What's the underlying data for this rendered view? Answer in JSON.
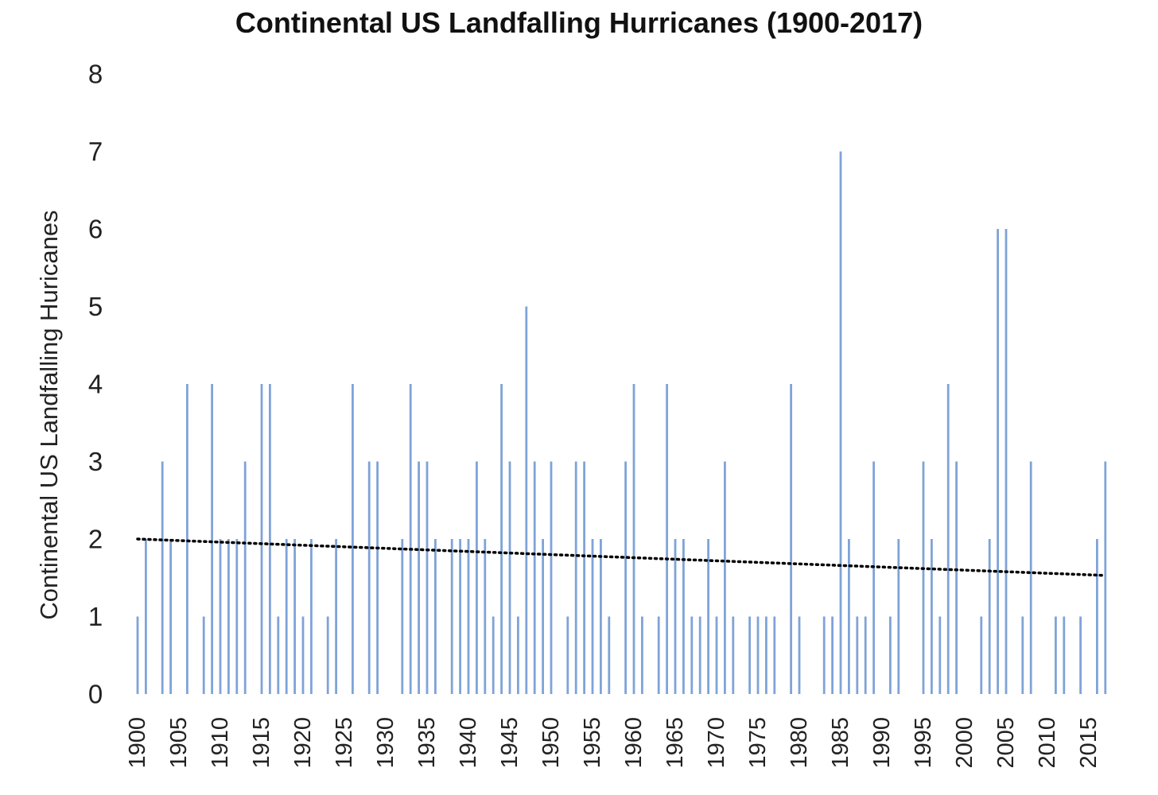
{
  "chart_data": {
    "type": "bar",
    "title": "Continental US Landfalling Hurricanes (1900-2017)",
    "xlabel": "",
    "ylabel": "Continental US Landfalling Huricanes",
    "ylim": [
      0,
      8
    ],
    "yticks": [
      "0",
      "1",
      "2",
      "3",
      "4",
      "5",
      "6",
      "7",
      "8"
    ],
    "xticks": [
      "1900",
      "1905",
      "1910",
      "1915",
      "1920",
      "1925",
      "1930",
      "1935",
      "1940",
      "1945",
      "1950",
      "1955",
      "1960",
      "1965",
      "1970",
      "1975",
      "1980",
      "1985",
      "1990",
      "1995",
      "2000",
      "2005",
      "2010",
      "2015"
    ],
    "grid": false,
    "legend": "none",
    "bar_color": "#7fa3d8",
    "trendline": {
      "style": "dotted",
      "color": "#000000",
      "start": 2.0,
      "end": 1.53
    },
    "categories": [
      "1900",
      "1901",
      "1902",
      "1903",
      "1904",
      "1905",
      "1906",
      "1907",
      "1908",
      "1909",
      "1910",
      "1911",
      "1912",
      "1913",
      "1914",
      "1915",
      "1916",
      "1917",
      "1918",
      "1919",
      "1920",
      "1921",
      "1922",
      "1923",
      "1924",
      "1925",
      "1926",
      "1927",
      "1928",
      "1929",
      "1930",
      "1931",
      "1932",
      "1933",
      "1934",
      "1935",
      "1936",
      "1937",
      "1938",
      "1939",
      "1940",
      "1941",
      "1942",
      "1943",
      "1944",
      "1945",
      "1946",
      "1947",
      "1948",
      "1949",
      "1950",
      "1951",
      "1952",
      "1953",
      "1954",
      "1955",
      "1956",
      "1957",
      "1958",
      "1959",
      "1960",
      "1961",
      "1962",
      "1963",
      "1964",
      "1965",
      "1966",
      "1967",
      "1968",
      "1969",
      "1970",
      "1971",
      "1972",
      "1973",
      "1974",
      "1975",
      "1976",
      "1977",
      "1978",
      "1979",
      "1980",
      "1981",
      "1982",
      "1983",
      "1984",
      "1985",
      "1986",
      "1987",
      "1988",
      "1989",
      "1990",
      "1991",
      "1992",
      "1993",
      "1994",
      "1995",
      "1996",
      "1997",
      "1998",
      "1999",
      "2000",
      "2001",
      "2002",
      "2003",
      "2004",
      "2005",
      "2006",
      "2007",
      "2008",
      "2009",
      "2010",
      "2011",
      "2012",
      "2013",
      "2014",
      "2015",
      "2016",
      "2017"
    ],
    "values": [
      1,
      2,
      0,
      3,
      2,
      0,
      4,
      0,
      1,
      4,
      2,
      2,
      2,
      3,
      0,
      4,
      4,
      1,
      2,
      2,
      1,
      2,
      0,
      1,
      2,
      0,
      4,
      0,
      3,
      3,
      0,
      0,
      2,
      4,
      3,
      3,
      2,
      0,
      2,
      2,
      2,
      3,
      2,
      1,
      4,
      3,
      1,
      5,
      3,
      2,
      3,
      0,
      1,
      3,
      3,
      2,
      2,
      1,
      0,
      3,
      4,
      1,
      0,
      1,
      4,
      2,
      2,
      1,
      1,
      2,
      1,
      3,
      1,
      0,
      1,
      1,
      1,
      1,
      0,
      4,
      1,
      0,
      0,
      1,
      1,
      7,
      2,
      1,
      1,
      3,
      0,
      1,
      2,
      0,
      0,
      3,
      2,
      1,
      4,
      3,
      0,
      0,
      1,
      2,
      6,
      6,
      0,
      1,
      3,
      0,
      0,
      1,
      1,
      0,
      1,
      0,
      2,
      3
    ]
  }
}
